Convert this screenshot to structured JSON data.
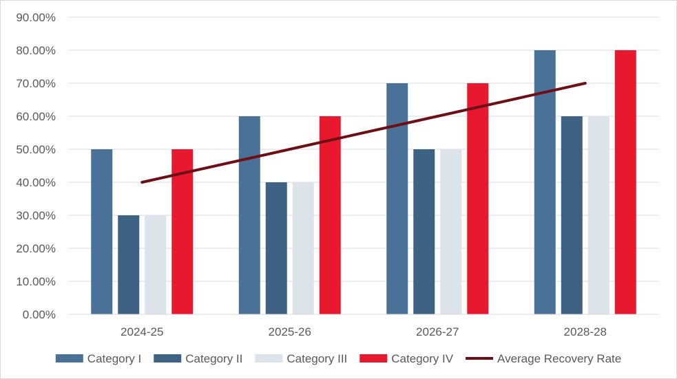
{
  "chart_data": {
    "type": "bar",
    "title": "",
    "xlabel": "",
    "ylabel": "",
    "categories": [
      "2024-25",
      "2025-26",
      "2026-27",
      "2028-28"
    ],
    "ylim": [
      0,
      90
    ],
    "yticks": [
      "0.00%",
      "10.00%",
      "20.00%",
      "30.00%",
      "40.00%",
      "50.00%",
      "60.00%",
      "70.00%",
      "80.00%",
      "90.00%"
    ],
    "grid": true,
    "legend_position": "bottom",
    "series": [
      {
        "name": "Category I",
        "kind": "bar",
        "color": "#4a7298",
        "values": [
          50,
          60,
          70,
          80
        ]
      },
      {
        "name": "Category II",
        "kind": "bar",
        "color": "#3e6283",
        "values": [
          30,
          40,
          50,
          60
        ]
      },
      {
        "name": "Category III",
        "kind": "bar",
        "color": "#dce3ea",
        "values": [
          30,
          40,
          50,
          60
        ]
      },
      {
        "name": "Category IV",
        "kind": "bar",
        "color": "#e8192f",
        "values": [
          50,
          60,
          70,
          80
        ]
      },
      {
        "name": "Average Recovery Rate",
        "kind": "line",
        "color": "#6e0e15",
        "values": [
          40,
          50,
          60,
          70
        ]
      }
    ]
  }
}
